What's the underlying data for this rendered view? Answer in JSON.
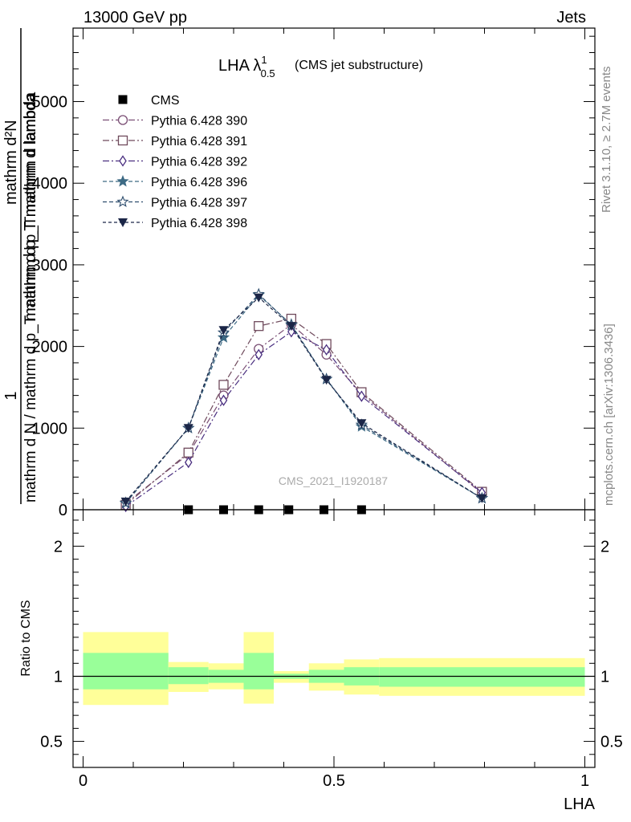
{
  "header": {
    "left": "13000 GeV pp",
    "right": "Jets",
    "side_top": "Rivet 3.1.10, ≥ 2.7M events",
    "side_bottom": "mcplots.cern.ch [arXiv:1306.3436]",
    "watermark": "CMS_2021_I1920187"
  },
  "chart_data": [
    {
      "type": "line",
      "title": "LHA λ",
      "title_sup": "1",
      "title_sub": "0.5",
      "title_suffix": "(CMS jet substructure)",
      "ylabel_top": "1",
      "ylabel_lines": [
        "mathrm d N / mathrm d p_T mathrm d p_T mathrm d lambda",
        "mathrm d²N"
      ],
      "ylim": [
        0,
        5900
      ],
      "yticks": [
        0,
        1000,
        2000,
        3000,
        4000,
        5000
      ],
      "ytick_labels": [
        "0",
        "1000",
        "2000",
        "3000",
        "4000",
        "5000"
      ],
      "xlim": [
        -0.02,
        1.02
      ],
      "grid": false,
      "legend_position": "top-left",
      "series": [
        {
          "name": "CMS",
          "color": "#000000",
          "marker": "square-filled",
          "dash": "none",
          "x": [
            0.21,
            0.28,
            0.35,
            0.41,
            0.48,
            0.555
          ],
          "y": [
            0,
            0,
            0,
            0,
            0,
            0
          ]
        },
        {
          "name": "Pythia 6.428 390",
          "color": "#7a4e74",
          "marker": "circle-open",
          "dash": "8,3,2,3",
          "x": [
            0.085,
            0.21,
            0.28,
            0.35,
            0.415,
            0.485,
            0.555,
            0.795
          ],
          "y": [
            80,
            680,
            1400,
            1970,
            2270,
            1900,
            1420,
            200
          ]
        },
        {
          "name": "Pythia 6.428 391",
          "color": "#6f4a5c",
          "marker": "square-open",
          "dash": "8,3,2,3",
          "x": [
            0.085,
            0.21,
            0.28,
            0.35,
            0.415,
            0.485,
            0.555,
            0.795
          ],
          "y": [
            60,
            700,
            1530,
            2250,
            2340,
            2030,
            1440,
            220
          ]
        },
        {
          "name": "Pythia 6.428 392",
          "color": "#4a2f80",
          "marker": "diamond-open",
          "dash": "8,3,2,3",
          "x": [
            0.085,
            0.21,
            0.28,
            0.35,
            0.415,
            0.485,
            0.555,
            0.795
          ],
          "y": [
            40,
            580,
            1340,
            1900,
            2180,
            1960,
            1390,
            210
          ]
        },
        {
          "name": "Pythia 6.428 396",
          "color": "#3d6a84",
          "marker": "star-filled",
          "dash": "5,3",
          "x": [
            0.085,
            0.21,
            0.28,
            0.35,
            0.415,
            0.485,
            0.555,
            0.795
          ],
          "y": [
            80,
            1000,
            2110,
            2630,
            2270,
            1600,
            1020,
            140
          ]
        },
        {
          "name": "Pythia 6.428 397",
          "color": "#2f4e6e",
          "marker": "star-open",
          "dash": "5,3",
          "x": [
            0.085,
            0.21,
            0.28,
            0.35,
            0.415,
            0.485,
            0.555,
            0.795
          ],
          "y": [
            85,
            1000,
            2170,
            2640,
            2260,
            1600,
            1040,
            140
          ]
        },
        {
          "name": "Pythia 6.428 398",
          "color": "#1b2647",
          "marker": "triangle-down-filled",
          "dash": "4,3",
          "x": [
            0.085,
            0.21,
            0.28,
            0.35,
            0.415,
            0.485,
            0.555,
            0.795
          ],
          "y": [
            100,
            1000,
            2200,
            2600,
            2250,
            1590,
            1060,
            140
          ]
        }
      ]
    },
    {
      "type": "area",
      "ylabel": "Ratio to CMS",
      "xlabel": "LHA",
      "ylim": [
        0.3,
        2.28
      ],
      "yticks": [
        0.5,
        1,
        2
      ],
      "ytick_labels": [
        "0.5",
        "1",
        "2"
      ],
      "xlim": [
        -0.02,
        1.02
      ],
      "xticks": [
        0,
        0.5,
        1
      ],
      "xtick_labels": [
        "0",
        "0.5",
        "1"
      ],
      "reference_line": 1,
      "bands": [
        {
          "x": [
            0.0,
            0.17
          ],
          "inner": [
            0.9,
            1.18
          ],
          "outer": [
            0.78,
            1.34
          ]
        },
        {
          "x": [
            0.17,
            0.25
          ],
          "inner": [
            0.94,
            1.07
          ],
          "outer": [
            0.88,
            1.11
          ]
        },
        {
          "x": [
            0.25,
            0.32
          ],
          "inner": [
            0.95,
            1.05
          ],
          "outer": [
            0.9,
            1.1
          ]
        },
        {
          "x": [
            0.32,
            0.38
          ],
          "inner": [
            0.9,
            1.18
          ],
          "outer": [
            0.79,
            1.34
          ]
        },
        {
          "x": [
            0.38,
            0.45
          ],
          "inner": [
            0.98,
            1.02
          ],
          "outer": [
            0.95,
            1.04
          ]
        },
        {
          "x": [
            0.45,
            0.52
          ],
          "inner": [
            0.95,
            1.05
          ],
          "outer": [
            0.89,
            1.1
          ]
        },
        {
          "x": [
            0.52,
            0.59
          ],
          "inner": [
            0.93,
            1.07
          ],
          "outer": [
            0.86,
            1.13
          ]
        },
        {
          "x": [
            0.59,
            1.0
          ],
          "inner": [
            0.92,
            1.07
          ],
          "outer": [
            0.85,
            1.14
          ]
        }
      ],
      "colors": {
        "inner": "#99ff99",
        "outer": "#ffff99"
      }
    }
  ]
}
